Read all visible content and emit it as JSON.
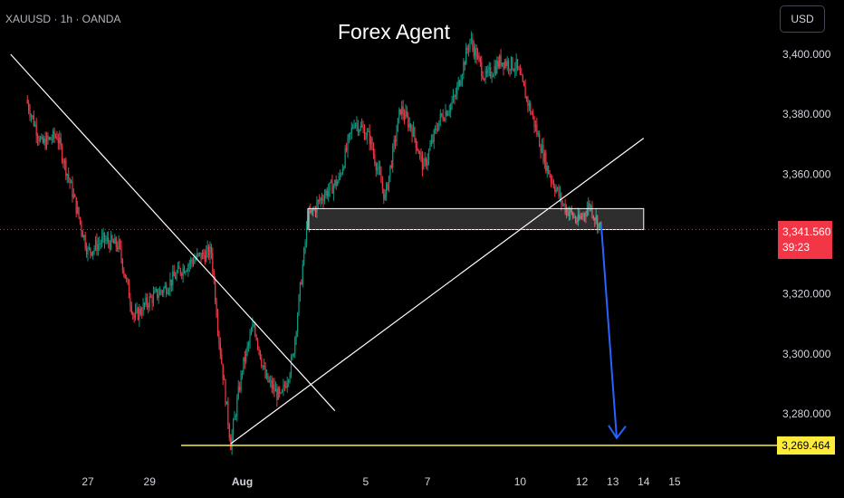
{
  "header": {
    "symbol": "XAUUSD · 1h · OANDA",
    "title": "Forex Agent",
    "currency_button": "USD"
  },
  "badges": {
    "last_price": "3,341.560",
    "countdown": "39:23",
    "support_level": "3,269.464"
  },
  "colors": {
    "background": "#000000",
    "bull_candle": "#089981",
    "bear_candle": "#f23645",
    "trendline": "#ffffff",
    "forecast_arrow": "#2962ff",
    "support_line": "#ffeb3b",
    "axis_text": "#d1d4dc"
  },
  "chart_data": {
    "type": "candlestick",
    "instrument": "XAUUSD",
    "timeframe": "1h",
    "y_axis": {
      "ticks": [
        3280,
        3300,
        3320,
        3340,
        3360,
        3380,
        3400
      ],
      "tick_labels": [
        "3,280.000",
        "3,300.000",
        "3,320.000",
        "3,340.000",
        "3,360.000",
        "3,380.000",
        "3,400.000"
      ],
      "range": [
        3266,
        3412
      ]
    },
    "x_axis": {
      "tick_labels": [
        "27",
        "29",
        "Aug",
        "5",
        "7",
        "10",
        "12",
        "13",
        "14",
        "15"
      ],
      "range": [
        "Jul 25",
        "Aug 15"
      ]
    },
    "grid": false,
    "approx_close_path": [
      {
        "t": "Jul 25 00:00",
        "close": 3385
      },
      {
        "t": "Jul 25 12:00",
        "close": 3370
      },
      {
        "t": "Jul 26 00:00",
        "close": 3373
      },
      {
        "t": "Jul 26 12:00",
        "close": 3354
      },
      {
        "t": "Jul 27 00:00",
        "close": 3334
      },
      {
        "t": "Jul 27 12:00",
        "close": 3338
      },
      {
        "t": "Jul 28 00:00",
        "close": 3336
      },
      {
        "t": "Jul 28 12:00",
        "close": 3312
      },
      {
        "t": "Jul 29 00:00",
        "close": 3318
      },
      {
        "t": "Jul 29 12:00",
        "close": 3322
      },
      {
        "t": "Jul 30 00:00",
        "close": 3328
      },
      {
        "t": "Jul 30 12:00",
        "close": 3332
      },
      {
        "t": "Jul 31 00:00",
        "close": 3334
      },
      {
        "t": "Jul 31 06:00",
        "close": 3305
      },
      {
        "t": "Jul 31 15:00",
        "close": 3270
      },
      {
        "t": "Aug 1 00:00",
        "close": 3295
      },
      {
        "t": "Aug 1 09:00",
        "close": 3310
      },
      {
        "t": "Aug 1 18:00",
        "close": 3292
      },
      {
        "t": "Aug 2 06:00",
        "close": 3285
      },
      {
        "t": "Aug 2 15:00",
        "close": 3298
      },
      {
        "t": "Aug 3 03:00",
        "close": 3345
      },
      {
        "t": "Aug 3 15:00",
        "close": 3353
      },
      {
        "t": "Aug 4 03:00",
        "close": 3358
      },
      {
        "t": "Aug 4 15:00",
        "close": 3378
      },
      {
        "t": "Aug 5 03:00",
        "close": 3372
      },
      {
        "t": "Aug 5 15:00",
        "close": 3352
      },
      {
        "t": "Aug 6 03:00",
        "close": 3382
      },
      {
        "t": "Aug 6 12:00",
        "close": 3375
      },
      {
        "t": "Aug 6 21:00",
        "close": 3362
      },
      {
        "t": "Aug 7 09:00",
        "close": 3378
      },
      {
        "t": "Aug 7 21:00",
        "close": 3385
      },
      {
        "t": "Aug 8 09:00",
        "close": 3405
      },
      {
        "t": "Aug 8 21:00",
        "close": 3392
      },
      {
        "t": "Aug 9 09:00",
        "close": 3398
      },
      {
        "t": "Aug 9 21:00",
        "close": 3396
      },
      {
        "t": "Aug 10 09:00",
        "close": 3380
      },
      {
        "t": "Aug 10 21:00",
        "close": 3362
      },
      {
        "t": "Aug 11 09:00",
        "close": 3350
      },
      {
        "t": "Aug 11 21:00",
        "close": 3344
      },
      {
        "t": "Aug 12 06:00",
        "close": 3350
      },
      {
        "t": "Aug 12 12:00",
        "close": 3344
      },
      {
        "t": "Aug 12 15:00",
        "close": 3341.56
      }
    ],
    "annotations": {
      "falling_trendline": [
        {
          "t": "Jul 24 12:00",
          "price": 3400
        },
        {
          "t": "Aug 4 00:00",
          "price": 3281
        }
      ],
      "rising_trendline": [
        {
          "t": "Jul 31 15:00",
          "price": 3270
        },
        {
          "t": "Aug 14 00:00",
          "price": 3372
        }
      ],
      "resistance_zone": {
        "t_start": "Aug 3 03:00",
        "t_end": "Aug 14 00:00",
        "price_low": 3341.5,
        "price_high": 3348.5
      },
      "forecast_arrow": [
        {
          "t": "Aug 12 15:00",
          "price": 3343
        },
        {
          "t": "Aug 13 03:00",
          "price": 3269.5
        }
      ],
      "support_line": {
        "price": 3269.464
      },
      "last_price_line": {
        "price": 3341.56
      }
    }
  }
}
